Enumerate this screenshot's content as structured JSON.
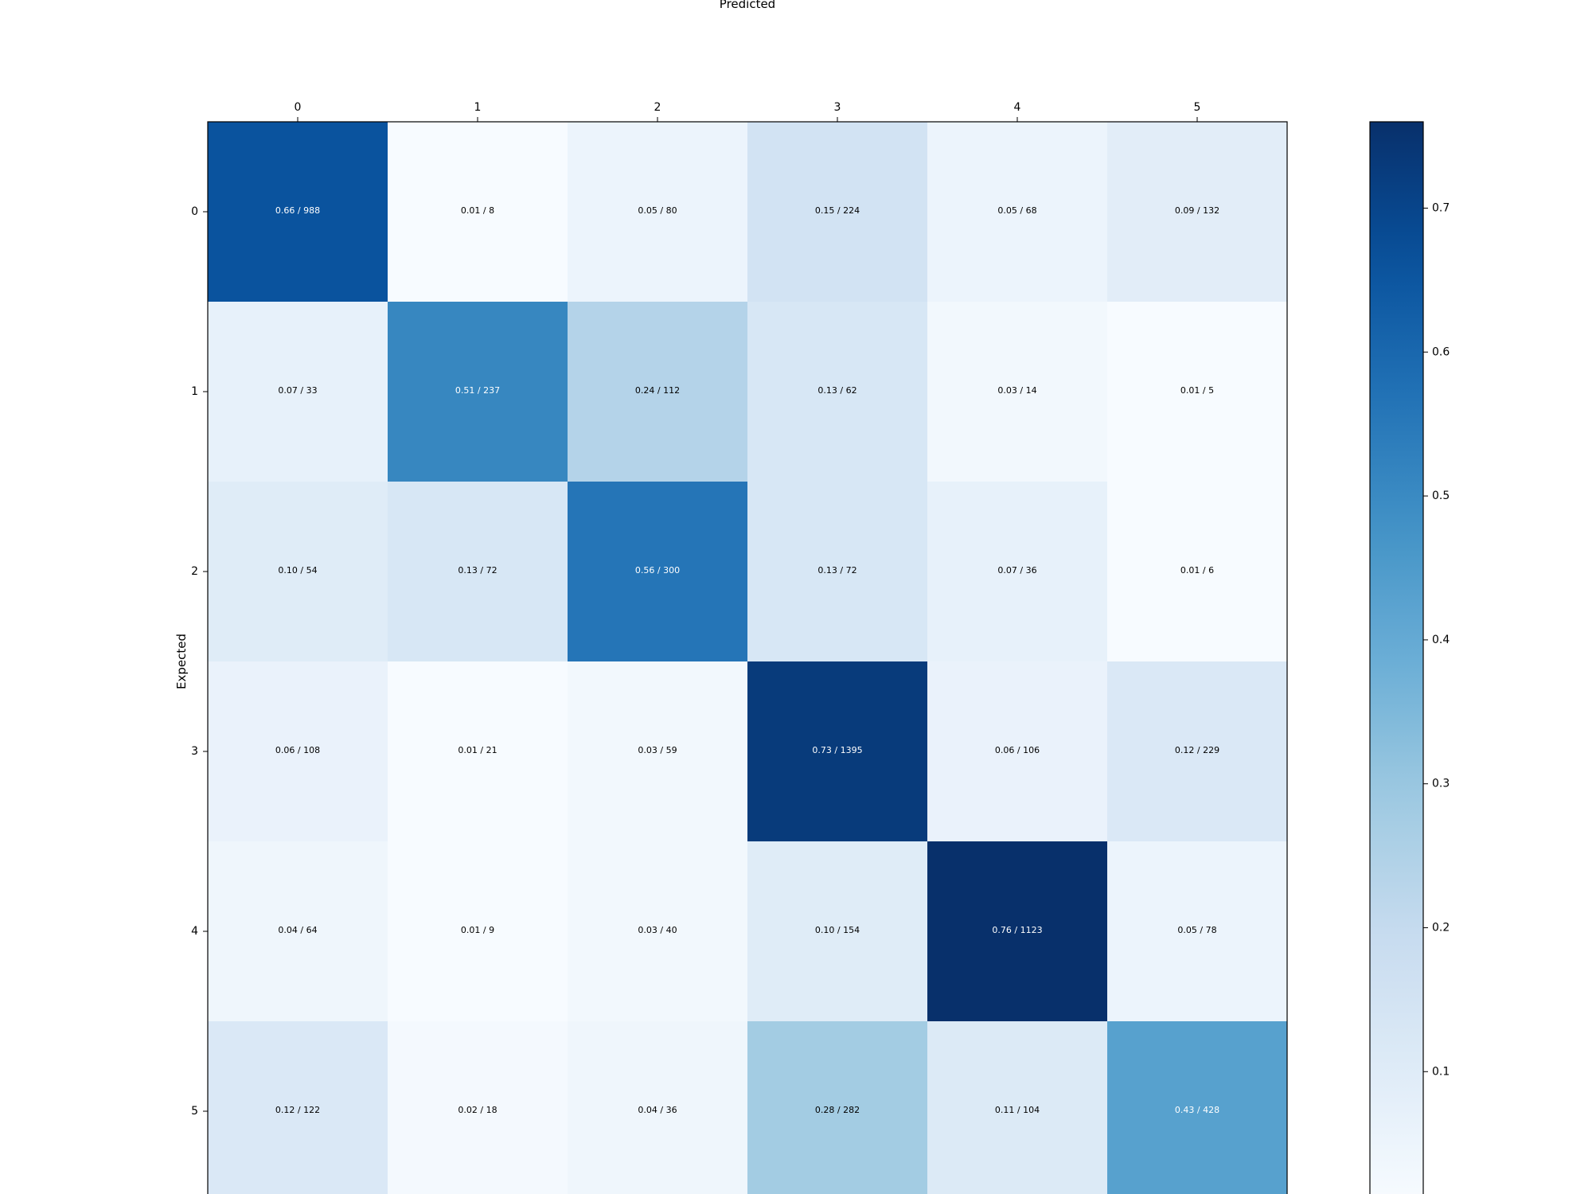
{
  "chart_data": {
    "type": "heatmap",
    "xlabel": "Predicted",
    "ylabel": "Expected",
    "x_categories": [
      "0",
      "1",
      "2",
      "3",
      "4",
      "5"
    ],
    "y_categories": [
      "0",
      "1",
      "2",
      "3",
      "4",
      "5"
    ],
    "colormap": "Blues",
    "color_range": [
      0.01,
      0.76
    ],
    "colorbar_ticks": [
      "0.1",
      "0.2",
      "0.3",
      "0.4",
      "0.5",
      "0.6",
      "0.7"
    ],
    "colorbar_tick_values": [
      0.1,
      0.2,
      0.3,
      0.4,
      0.5,
      0.6,
      0.7
    ],
    "fractions": [
      [
        0.66,
        0.01,
        0.05,
        0.15,
        0.05,
        0.09
      ],
      [
        0.07,
        0.51,
        0.24,
        0.13,
        0.03,
        0.01
      ],
      [
        0.1,
        0.13,
        0.56,
        0.13,
        0.07,
        0.01
      ],
      [
        0.06,
        0.01,
        0.03,
        0.73,
        0.06,
        0.12
      ],
      [
        0.04,
        0.01,
        0.03,
        0.1,
        0.76,
        0.05
      ],
      [
        0.12,
        0.02,
        0.04,
        0.28,
        0.11,
        0.43
      ]
    ],
    "counts": [
      [
        988,
        8,
        80,
        224,
        68,
        132
      ],
      [
        33,
        237,
        112,
        62,
        14,
        5
      ],
      [
        54,
        72,
        300,
        72,
        36,
        6
      ],
      [
        108,
        21,
        59,
        1395,
        106,
        229
      ],
      [
        64,
        9,
        40,
        154,
        1123,
        78
      ],
      [
        122,
        18,
        36,
        282,
        104,
        428
      ]
    ],
    "cell_labels": [
      [
        "0.66 / 988",
        "0.01 / 8",
        "0.05 / 80",
        "0.15 / 224",
        "0.05 / 68",
        "0.09 / 132"
      ],
      [
        "0.07 / 33",
        "0.51 / 237",
        "0.24 / 112",
        "0.13 / 62",
        "0.03 / 14",
        "0.01 / 5"
      ],
      [
        "0.10 / 54",
        "0.13 / 72",
        "0.56 / 300",
        "0.13 / 72",
        "0.07 / 36",
        "0.01 / 6"
      ],
      [
        "0.06 / 108",
        "0.01 / 21",
        "0.03 / 59",
        "0.73 / 1395",
        "0.06 / 106",
        "0.12 / 229"
      ],
      [
        "0.04 / 64",
        "0.01 / 9",
        "0.03 / 40",
        "0.10 / 154",
        "0.76 / 1123",
        "0.05 / 78"
      ],
      [
        "0.12 / 122",
        "0.02 / 18",
        "0.04 / 36",
        "0.28 / 282",
        "0.11 / 104",
        "0.43 / 428"
      ]
    ],
    "grid": false,
    "colorbar_position": "right"
  }
}
